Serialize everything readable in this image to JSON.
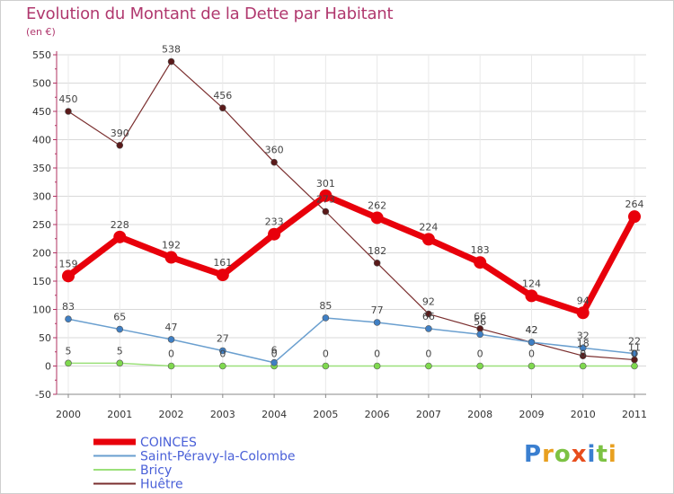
{
  "title": "Evolution du Montant de la Dette par Habitant",
  "unit_label": "(en €)",
  "logo_text": "Proxiti",
  "colors": {
    "title": "#b0386e",
    "grid": "#d9d9d9",
    "legend_text": "#4a60d8"
  },
  "chart_data": {
    "type": "line",
    "title": "Evolution du Montant de la Dette par Habitant",
    "ylabel": "(en €)",
    "xlabel": "",
    "ylim": [
      -50,
      550
    ],
    "yticks": [
      -50,
      0,
      50,
      100,
      150,
      200,
      250,
      300,
      350,
      400,
      450,
      500,
      550
    ],
    "grid": true,
    "legend_position": "bottom-left",
    "categories": [
      "2000",
      "2001",
      "2002",
      "2003",
      "2004",
      "2005",
      "2006",
      "2007",
      "2008",
      "2009",
      "2010",
      "2011"
    ],
    "series": [
      {
        "name": "COINCES",
        "color": "#e8000b",
        "width": 7,
        "marker": "#e8000b",
        "marker_r": 7,
        "values": [
          159,
          228,
          192,
          161,
          233,
          301,
          262,
          224,
          183,
          124,
          94,
          264
        ]
      },
      {
        "name": "Saint-Péravy-la-Colombe",
        "color": "#6a9fcf",
        "width": 1.5,
        "marker": "#3f7fc4",
        "marker_r": 3.5,
        "values": [
          83,
          65,
          47,
          27,
          6,
          85,
          77,
          66,
          56,
          42,
          32,
          22
        ]
      },
      {
        "name": "Bricy",
        "color": "#9be07a",
        "width": 1.5,
        "marker": "#7fd94e",
        "marker_r": 3.5,
        "values": [
          5,
          5,
          0,
          0,
          0,
          0,
          0,
          0,
          0,
          0,
          0,
          0
        ]
      },
      {
        "name": "Huêtre",
        "color": "#7a2e2e",
        "width": 1.2,
        "marker": "#5a1a1a",
        "marker_r": 3.5,
        "values": [
          450,
          390,
          538,
          456,
          360,
          273,
          182,
          92,
          66,
          42,
          18,
          11
        ]
      }
    ],
    "data_labels": {
      "COINCES": [
        "159",
        "228",
        "192",
        "161",
        "233",
        "301",
        "262",
        "224",
        "183",
        "124",
        "94",
        "264"
      ],
      "Saint-Péravy-la-Colombe": [
        "83",
        "65",
        "47",
        "27",
        "6",
        "85",
        "77",
        "66",
        "56",
        "42",
        "32",
        "22"
      ],
      "Bricy": [
        "5",
        "5",
        "0",
        "0",
        "0",
        "0",
        "0",
        "0",
        "0",
        "0",
        "0",
        "0"
      ],
      "Huêtre": [
        "450",
        "390",
        "538",
        "456",
        "360",
        "273",
        "182",
        "92",
        "66",
        "42",
        "18",
        "11"
      ]
    }
  }
}
